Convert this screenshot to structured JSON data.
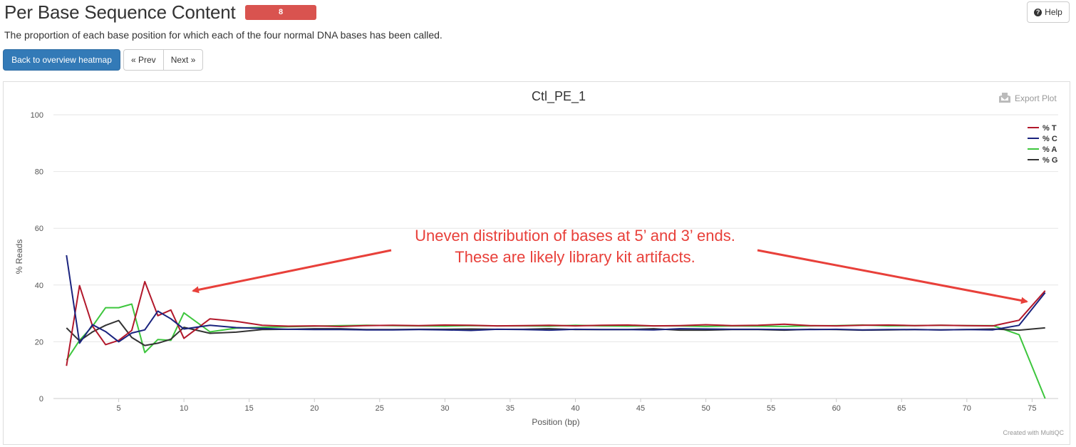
{
  "header": {
    "title": "Per Base Sequence Content",
    "badge": "8",
    "help_label": "Help",
    "description": "The proportion of each base position for which each of the four normal DNA bases has been called."
  },
  "nav": {
    "back_label": "Back to overview heatmap",
    "prev_label": "« Prev",
    "next_label": "Next »"
  },
  "plot": {
    "export_label": "Export Plot",
    "credit": "Created with MultiQC",
    "annotation": [
      "Uneven distribution of bases at 5’ and 3’ ends.",
      "These are likely library kit artifacts."
    ]
  },
  "colors": {
    "accent_blue": "#337ab7",
    "badge_red": "#d9534f",
    "annotation_red": "#e8403a"
  },
  "chart_data": {
    "type": "line",
    "title": "Ctl_PE_1",
    "xlabel": "Position (bp)",
    "ylabel": "% Reads",
    "xlim": [
      0,
      77
    ],
    "ylim": [
      0,
      100
    ],
    "x_ticks": [
      5,
      10,
      15,
      20,
      25,
      30,
      35,
      40,
      45,
      50,
      55,
      60,
      65,
      70,
      75
    ],
    "y_ticks": [
      0,
      20,
      40,
      60,
      80,
      100
    ],
    "grid": "horizontal",
    "legend_position": "top-right",
    "x": [
      1,
      2,
      3,
      4,
      5,
      6,
      7,
      8,
      9,
      10,
      12,
      14,
      16,
      18,
      20,
      22,
      24,
      26,
      28,
      30,
      32,
      34,
      36,
      38,
      40,
      42,
      44,
      46,
      48,
      50,
      52,
      54,
      56,
      58,
      60,
      62,
      64,
      66,
      68,
      70,
      72,
      74,
      76
    ],
    "series": [
      {
        "name": "% T",
        "color": "#b2182b",
        "values": [
          11.5,
          39.8,
          25.5,
          19,
          20.5,
          24,
          41.2,
          29.2,
          31.2,
          21.2,
          28.1,
          27.2,
          25.8,
          25.5,
          25.6,
          25.4,
          25.7,
          25.8,
          25.7,
          25.9,
          25.8,
          25.6,
          25.7,
          25.8,
          25.6,
          25.8,
          25.9,
          25.6,
          25.7,
          26,
          25.7,
          25.8,
          26.2,
          25.7,
          25.6,
          25.8,
          25.9,
          25.7,
          25.8,
          25.7,
          25.6,
          27.6,
          38
        ]
      },
      {
        "name": "% C",
        "color": "#1a237e",
        "values": [
          50.5,
          19.5,
          26,
          23.6,
          20,
          23.1,
          24.2,
          30.8,
          28.1,
          24.5,
          25.8,
          25,
          24.7,
          24.4,
          24.3,
          24.3,
          24.2,
          24.2,
          24.3,
          24.2,
          24,
          24.4,
          24.3,
          24.1,
          24.4,
          24.3,
          24.3,
          24.2,
          24.6,
          24.5,
          24.4,
          24.4,
          24.3,
          24.3,
          24.4,
          24.2,
          24.3,
          24.3,
          24.2,
          24.3,
          24.2,
          25.8,
          37.3
        ]
      },
      {
        "name": "% A",
        "color": "#3dc63d",
        "values": [
          13.5,
          20.5,
          25.5,
          32,
          32,
          33.3,
          16.2,
          20.8,
          20.5,
          30.2,
          23.5,
          24.8,
          25.1,
          25.3,
          25.5,
          25.7,
          25.8,
          25.7,
          25.6,
          25.5,
          25.7,
          25.6,
          25.6,
          25.5,
          25.8,
          25.6,
          25.5,
          25.6,
          25.6,
          25.4,
          25.6,
          25.5,
          25.4,
          25.6,
          25.7,
          25.9,
          25.6,
          25.7,
          25.8,
          25.7,
          25.7,
          22.5,
          0
        ]
      },
      {
        "name": "% G",
        "color": "#333333",
        "values": [
          24.9,
          20.3,
          23.5,
          25.8,
          27.5,
          21.5,
          18.7,
          19.5,
          20.9,
          25.1,
          23,
          23.4,
          24.3,
          24.4,
          24.6,
          24.6,
          24.3,
          24.3,
          24.4,
          24.4,
          24.5,
          24.4,
          24.4,
          24.6,
          24.3,
          24.3,
          24.3,
          24.6,
          24.1,
          24.1,
          24.3,
          24.3,
          24.1,
          24.4,
          24.3,
          24.1,
          24.2,
          24.3,
          24.2,
          24.3,
          24.5,
          24.1,
          24.9
        ]
      }
    ]
  }
}
